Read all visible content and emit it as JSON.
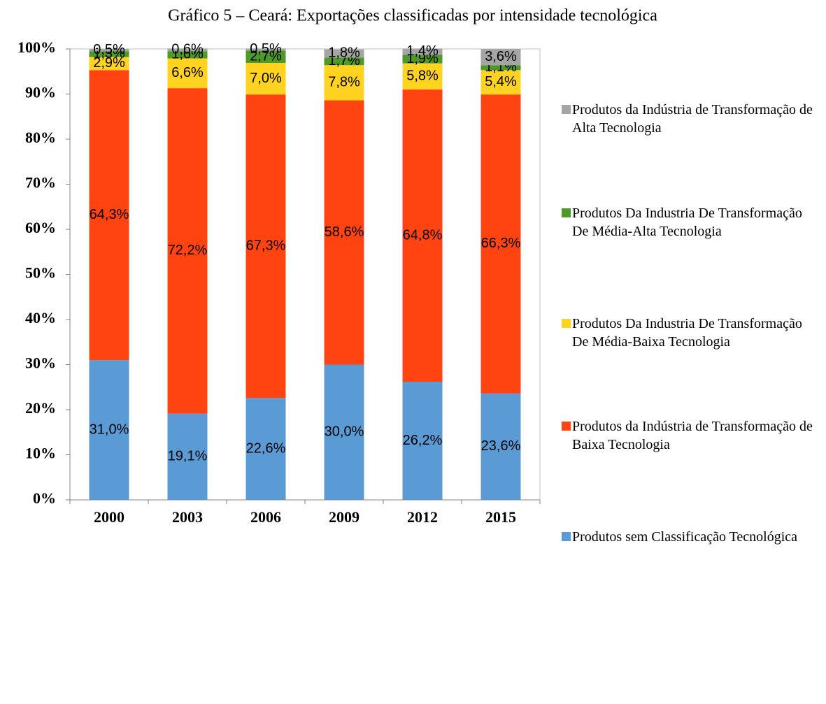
{
  "chart_data": {
    "type": "stacked_bar",
    "title": "Gráfico 5 – Ceará: Exportações classificadas por intensidade tecnológica",
    "categories": [
      "2000",
      "2003",
      "2006",
      "2009",
      "2012",
      "2015"
    ],
    "series": [
      {
        "name": "Produtos sem Classificação Tecnológica",
        "color": "#5b9bd5",
        "values": [
          31.0,
          19.1,
          22.6,
          30.0,
          26.2,
          23.6
        ],
        "value_labels": [
          "31,0%",
          "19,1%",
          "22,6%",
          "30,0%",
          "26,2%",
          "23,6%"
        ]
      },
      {
        "name": "Produtos da Indústria de Transformação de Baixa Tecnologia",
        "color": "#ff4411",
        "values": [
          64.3,
          72.2,
          67.3,
          58.6,
          64.8,
          66.3
        ],
        "value_labels": [
          "64,3%",
          "72,2%",
          "67,3%",
          "58,6%",
          "64,8%",
          "66,3%"
        ]
      },
      {
        "name": "Produtos Da Industria De Transformação De Média-Baixa Tecnologia",
        "color": "#ffd320",
        "values": [
          2.9,
          6.6,
          7.0,
          7.8,
          5.8,
          5.4
        ],
        "value_labels": [
          "2,9%",
          "6,6%",
          "7,0%",
          "7,8%",
          "5,8%",
          "5,4%"
        ]
      },
      {
        "name": "Produtos Da Industria De Transformação De Média-Alta Tecnologia",
        "color": "#4e9a28",
        "values": [
          1.3,
          1.6,
          2.7,
          1.7,
          1.9,
          1.1
        ],
        "value_labels": [
          "1,3%",
          "1,6%",
          "2,7%",
          "1,7%",
          "1,9%",
          "1,1%"
        ]
      },
      {
        "name": "Produtos da Indústria de Transformação de Alta Tecnologia",
        "color": "#a5a5a5",
        "values": [
          0.5,
          0.6,
          0.5,
          1.8,
          1.4,
          3.6
        ],
        "value_labels": [
          "0,5%",
          "0,6%",
          "0,5%",
          "1,8%",
          "1,4%",
          "3,6%"
        ]
      }
    ],
    "ylim": [
      0,
      100
    ],
    "yticks": [
      {
        "value": 0,
        "label": "0%"
      },
      {
        "value": 10,
        "label": "10%"
      },
      {
        "value": 20,
        "label": "20%"
      },
      {
        "value": 30,
        "label": "30%"
      },
      {
        "value": 40,
        "label": "40%"
      },
      {
        "value": 50,
        "label": "50%"
      },
      {
        "value": 60,
        "label": "60%"
      },
      {
        "value": 70,
        "label": "70%"
      },
      {
        "value": 80,
        "label": "80%"
      },
      {
        "value": 90,
        "label": "90%"
      },
      {
        "value": 100,
        "label": "100%"
      }
    ],
    "legend": "right"
  }
}
